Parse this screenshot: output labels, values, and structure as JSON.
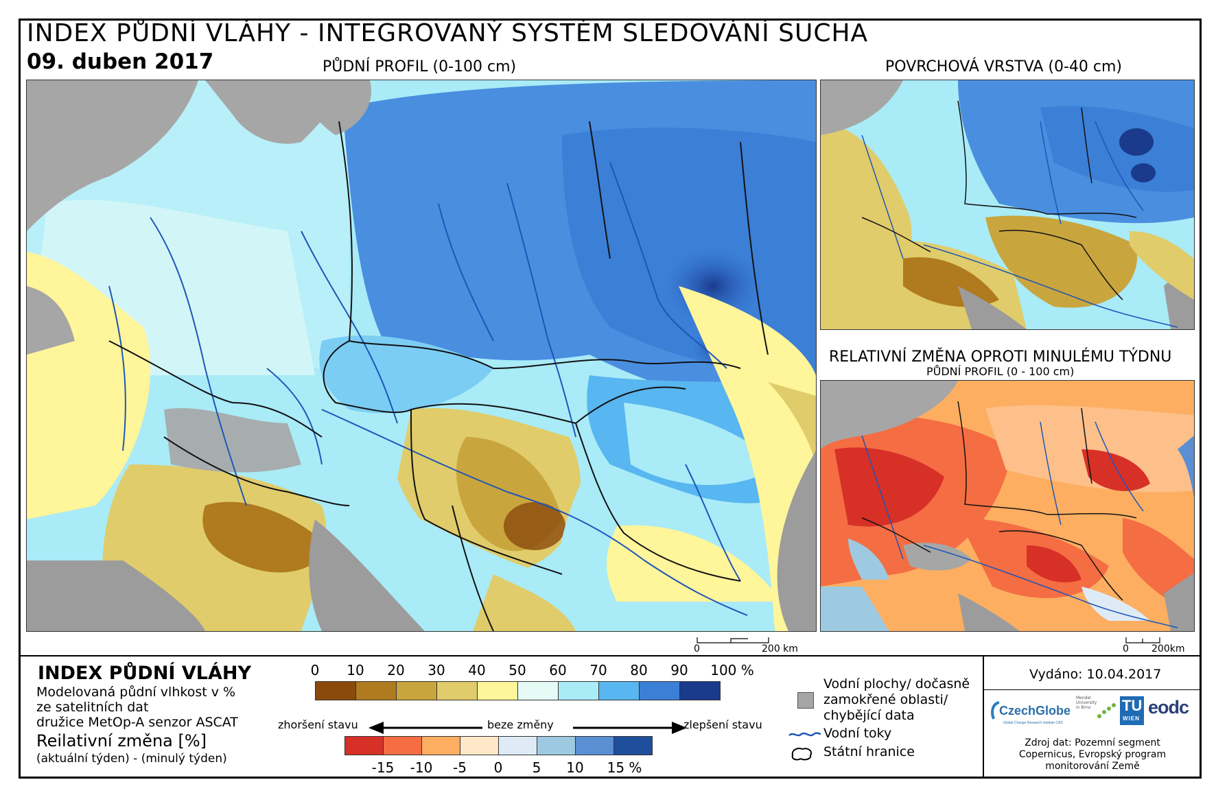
{
  "header": {
    "title": "INDEX PŮDNÍ VLÁHY - INTEGROVANÝ SYSTÉM SLEDOVÁNÍ SUCHA",
    "date": "09. duben 2017"
  },
  "maps": {
    "main_label": "PŮDNÍ PROFIL (0-100 cm)",
    "surface_label": "POVRCHOVÁ VRSTVA (0-40 cm)",
    "change_label": "RELATIVNÍ ZMĚNA OPROTI MINULÉMU TÝDNU",
    "change_sublabel": "PŮDNÍ PROFIL (0 - 100 cm)",
    "scale_zero": "0",
    "scale_main": "200 km",
    "scale_side": "200km"
  },
  "legend": {
    "heading": "INDEX PŮDNÍ VLÁHY",
    "desc1": "Modelovaná půdní vlhkost v %",
    "desc2": "ze satelitních dat",
    "desc3": "družice MetOp-A senzor ASCAT",
    "change_heading": "Reilativní změna [%]",
    "change_desc": "(aktuální týden) - (minulý týden)",
    "index_ticks": [
      "0",
      "10",
      "20",
      "30",
      "40",
      "50",
      "60",
      "70",
      "80",
      "90",
      "100 %"
    ],
    "index_colors": [
      "#8b4a0c",
      "#b07a1f",
      "#c9a53e",
      "#e0cc6a",
      "#fff59a",
      "#e6fbf6",
      "#a9ebf7",
      "#58b6f0",
      "#3b7fd6",
      "#1a3a8c"
    ],
    "change_ticks": [
      "-15",
      "-10",
      "-5",
      "0",
      "5",
      "10",
      "15 %"
    ],
    "change_colors": [
      "#d73027",
      "#f46d43",
      "#fdae61",
      "#fee8c8",
      "#deebf7",
      "#9ecae1",
      "#5a8fd4",
      "#1f4e9c"
    ],
    "worse": "zhoršení stavu",
    "nochange": "beze změny",
    "better": "zlepšení stavu",
    "water": "Vodní plochy/ dočasně\nzamokřené oblasti/\nchybějící data",
    "rivers": "Vodní toky",
    "borders": "Státní hranice"
  },
  "info": {
    "issued": "Vydáno: 10.04.2017",
    "source": "Zdroj dat: Pozemní segment\nCopernicus, Evropský program\nmonitorování Země",
    "logos": {
      "czechglobe": "CzechGlobe",
      "czechglobe_sub": "Global Change Research Institute CAS",
      "mendel": "Mendel\nUniversity\nin Brno",
      "tu": "TU",
      "tu_sub": "WIEN",
      "eodc": "eodc"
    }
  },
  "colors": {
    "land_grey": "#a6a6a6",
    "sea_grey": "#9c9c9c",
    "river_blue": "#1f55b8",
    "border_black": "#111111"
  }
}
